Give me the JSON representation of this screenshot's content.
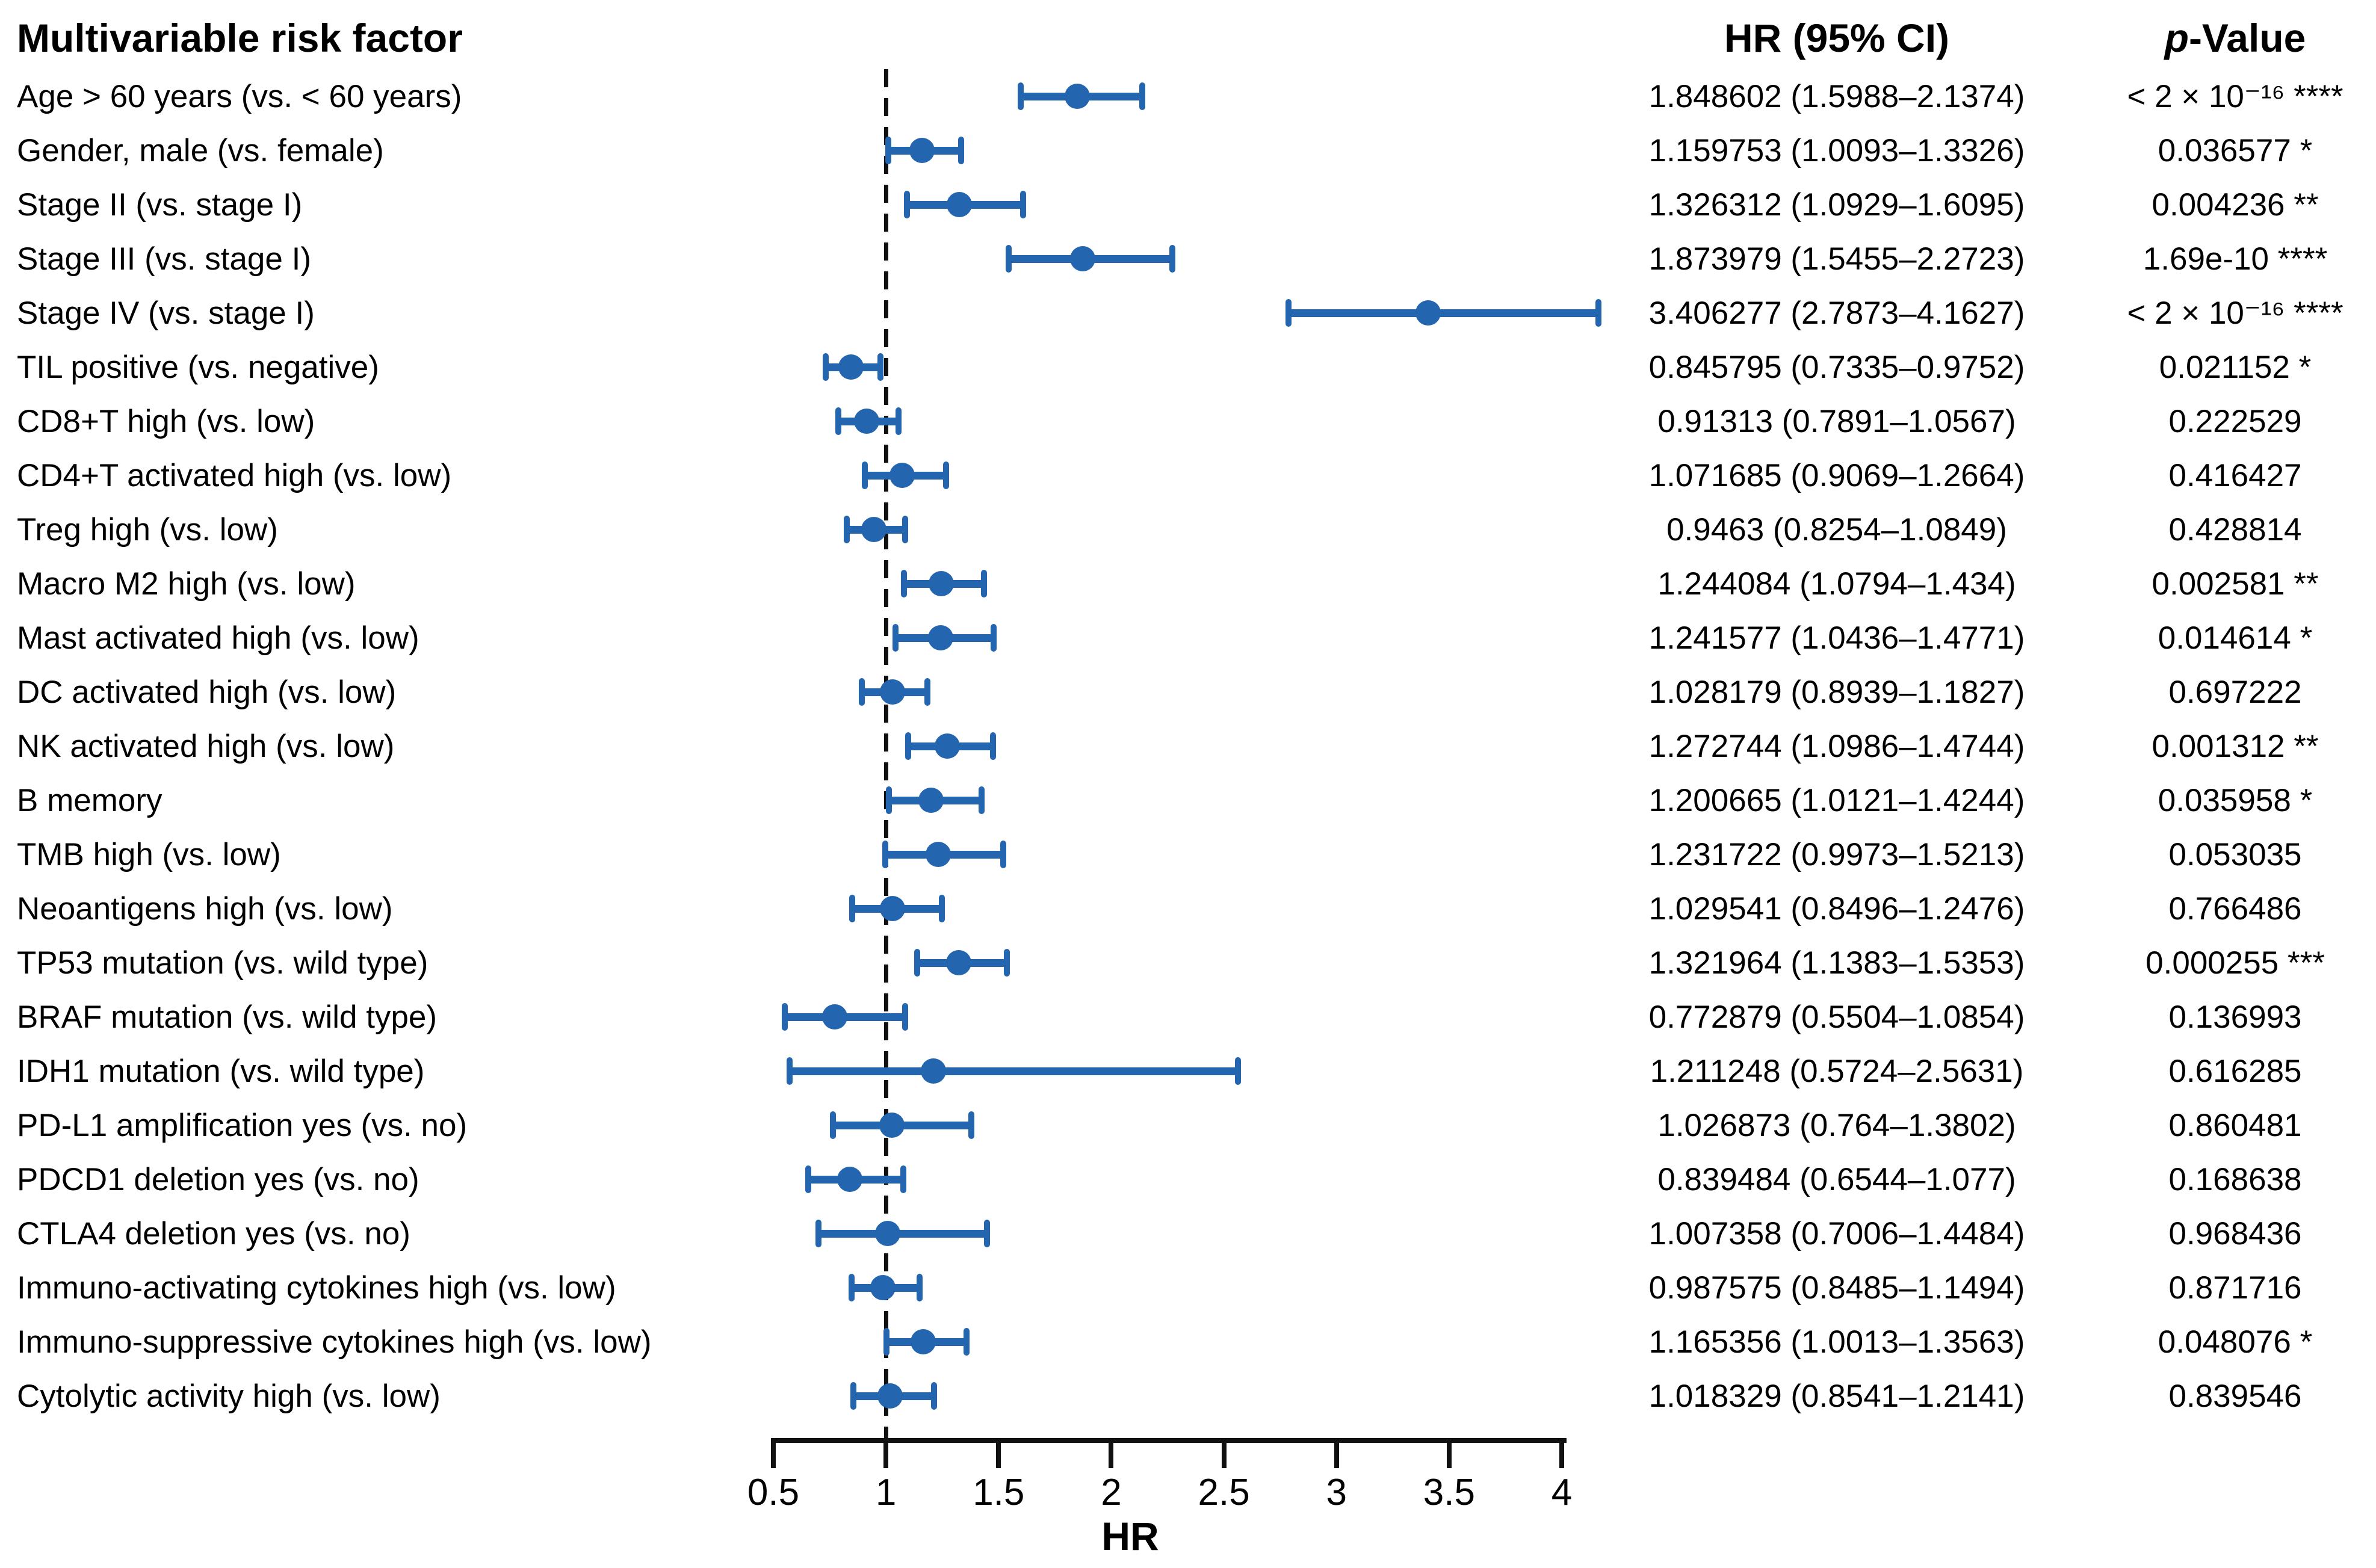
{
  "header": {
    "risk_factor": "Multivariable risk factor",
    "hr_ci": "HR (95% CI)",
    "p_value_italic": "p",
    "p_value_rest": "-Value"
  },
  "axis": {
    "label": "HR",
    "min": 0.5,
    "max": 4,
    "reference": 1,
    "ticks": [
      "0.5",
      "1",
      "1.5",
      "2",
      "2.5",
      "3",
      "3.5",
      "4"
    ],
    "tick_values": [
      0.5,
      1,
      1.5,
      2,
      2.5,
      3,
      3.5,
      4
    ]
  },
  "colors": {
    "marker_blue": "#2465b0",
    "axis_black": "#111111"
  },
  "chart_data": {
    "type": "forest",
    "title": "Multivariable risk factor",
    "xlabel": "HR",
    "xlim": [
      0.5,
      4
    ],
    "reference_line": 1,
    "legend_position": "none",
    "grid": false,
    "rows": [
      {
        "label": "Age > 60 years (vs. < 60 years)",
        "hr": 1.848602,
        "ci_low": 1.5988,
        "ci_high": 2.1374,
        "hr_text": "1.848602 (1.5988–2.1374)",
        "p_text": "< 2 × 10⁻¹⁶ ****"
      },
      {
        "label": "Gender, male (vs. female)",
        "hr": 1.159753,
        "ci_low": 1.0093,
        "ci_high": 1.3326,
        "hr_text": "1.159753 (1.0093–1.3326)",
        "p_text": "0.036577 *"
      },
      {
        "label": "Stage II (vs. stage I)",
        "hr": 1.326312,
        "ci_low": 1.0929,
        "ci_high": 1.6095,
        "hr_text": "1.326312 (1.0929–1.6095)",
        "p_text": "0.004236 **"
      },
      {
        "label": "Stage III (vs. stage I)",
        "hr": 1.873979,
        "ci_low": 1.5455,
        "ci_high": 2.2723,
        "hr_text": "1.873979 (1.5455–2.2723)",
        "p_text": "1.69e-10 ****"
      },
      {
        "label": "Stage IV (vs. stage I)",
        "hr": 3.406277,
        "ci_low": 2.7873,
        "ci_high": 4.1627,
        "hr_text": "3.406277 (2.7873–4.1627)",
        "p_text": "< 2 × 10⁻¹⁶ ****"
      },
      {
        "label": "TIL positive (vs. negative)",
        "hr": 0.845795,
        "ci_low": 0.7335,
        "ci_high": 0.9752,
        "hr_text": "0.845795 (0.7335–0.9752)",
        "p_text": "0.021152 *"
      },
      {
        "label": "CD8+T high (vs. low)",
        "hr": 0.91313,
        "ci_low": 0.7891,
        "ci_high": 1.0567,
        "hr_text": "0.91313 (0.7891–1.0567)",
        "p_text": "0.222529"
      },
      {
        "label": "CD4+T activated high (vs. low)",
        "hr": 1.071685,
        "ci_low": 0.9069,
        "ci_high": 1.2664,
        "hr_text": "1.071685 (0.9069–1.2664)",
        "p_text": "0.416427"
      },
      {
        "label": "Treg high (vs. low)",
        "hr": 0.9463,
        "ci_low": 0.8254,
        "ci_high": 1.0849,
        "hr_text": "0.9463 (0.8254–1.0849)",
        "p_text": "0.428814"
      },
      {
        "label": "Macro M2 high (vs. low)",
        "hr": 1.244084,
        "ci_low": 1.0794,
        "ci_high": 1.434,
        "hr_text": "1.244084 (1.0794–1.434)",
        "p_text": "0.002581 **"
      },
      {
        "label": "Mast activated high (vs. low)",
        "hr": 1.241577,
        "ci_low": 1.0436,
        "ci_high": 1.4771,
        "hr_text": "1.241577 (1.0436–1.4771)",
        "p_text": "0.014614 *"
      },
      {
        "label": "DC activated high (vs. low)",
        "hr": 1.028179,
        "ci_low": 0.8939,
        "ci_high": 1.1827,
        "hr_text": "1.028179 (0.8939–1.1827)",
        "p_text": "0.697222"
      },
      {
        "label": "NK activated high (vs. low)",
        "hr": 1.272744,
        "ci_low": 1.0986,
        "ci_high": 1.4744,
        "hr_text": "1.272744 (1.0986–1.4744)",
        "p_text": "0.001312 **"
      },
      {
        "label": "B memory",
        "hr": 1.200665,
        "ci_low": 1.0121,
        "ci_high": 1.4244,
        "hr_text": "1.200665 (1.0121–1.4244)",
        "p_text": "0.035958 *"
      },
      {
        "label": "TMB high (vs. low)",
        "hr": 1.231722,
        "ci_low": 0.9973,
        "ci_high": 1.5213,
        "hr_text": "1.231722 (0.9973–1.5213)",
        "p_text": "0.053035"
      },
      {
        "label": "Neoantigens high (vs. low)",
        "hr": 1.029541,
        "ci_low": 0.8496,
        "ci_high": 1.2476,
        "hr_text": "1.029541 (0.8496–1.2476)",
        "p_text": "0.766486"
      },
      {
        "label": "TP53 mutation (vs. wild type)",
        "hr": 1.321964,
        "ci_low": 1.1383,
        "ci_high": 1.5353,
        "hr_text": "1.321964 (1.1383–1.5353)",
        "p_text": "0.000255 ***"
      },
      {
        "label": "BRAF mutation (vs. wild type)",
        "hr": 0.772879,
        "ci_low": 0.5504,
        "ci_high": 1.0854,
        "hr_text": "0.772879 (0.5504–1.0854)",
        "p_text": "0.136993"
      },
      {
        "label": "IDH1 mutation (vs. wild type)",
        "hr": 1.211248,
        "ci_low": 0.5724,
        "ci_high": 2.5631,
        "hr_text": "1.211248 (0.5724–2.5631)",
        "p_text": "0.616285"
      },
      {
        "label": "PD-L1 amplification yes (vs. no)",
        "hr": 1.026873,
        "ci_low": 0.764,
        "ci_high": 1.3802,
        "hr_text": "1.026873 (0.764–1.3802)",
        "p_text": "0.860481"
      },
      {
        "label": "PDCD1 deletion yes (vs. no)",
        "hr": 0.839484,
        "ci_low": 0.6544,
        "ci_high": 1.077,
        "hr_text": "0.839484 (0.6544–1.077)",
        "p_text": "0.168638"
      },
      {
        "label": "CTLA4 deletion yes (vs. no)",
        "hr": 1.007358,
        "ci_low": 0.7006,
        "ci_high": 1.4484,
        "hr_text": "1.007358 (0.7006–1.4484)",
        "p_text": "0.968436"
      },
      {
        "label": "Immuno-activating cytokines high (vs. low)",
        "hr": 0.987575,
        "ci_low": 0.8485,
        "ci_high": 1.1494,
        "hr_text": "0.987575 (0.8485–1.1494)",
        "p_text": "0.871716"
      },
      {
        "label": "Immuno-suppressive cytokines high (vs. low)",
        "hr": 1.165356,
        "ci_low": 1.0013,
        "ci_high": 1.3563,
        "hr_text": "1.165356 (1.0013–1.3563)",
        "p_text": "0.048076 *"
      },
      {
        "label": "Cytolytic activity high (vs. low)",
        "hr": 1.018329,
        "ci_low": 0.8541,
        "ci_high": 1.2141,
        "hr_text": "1.018329 (0.8541–1.2141)",
        "p_text": "0.839546"
      }
    ]
  }
}
